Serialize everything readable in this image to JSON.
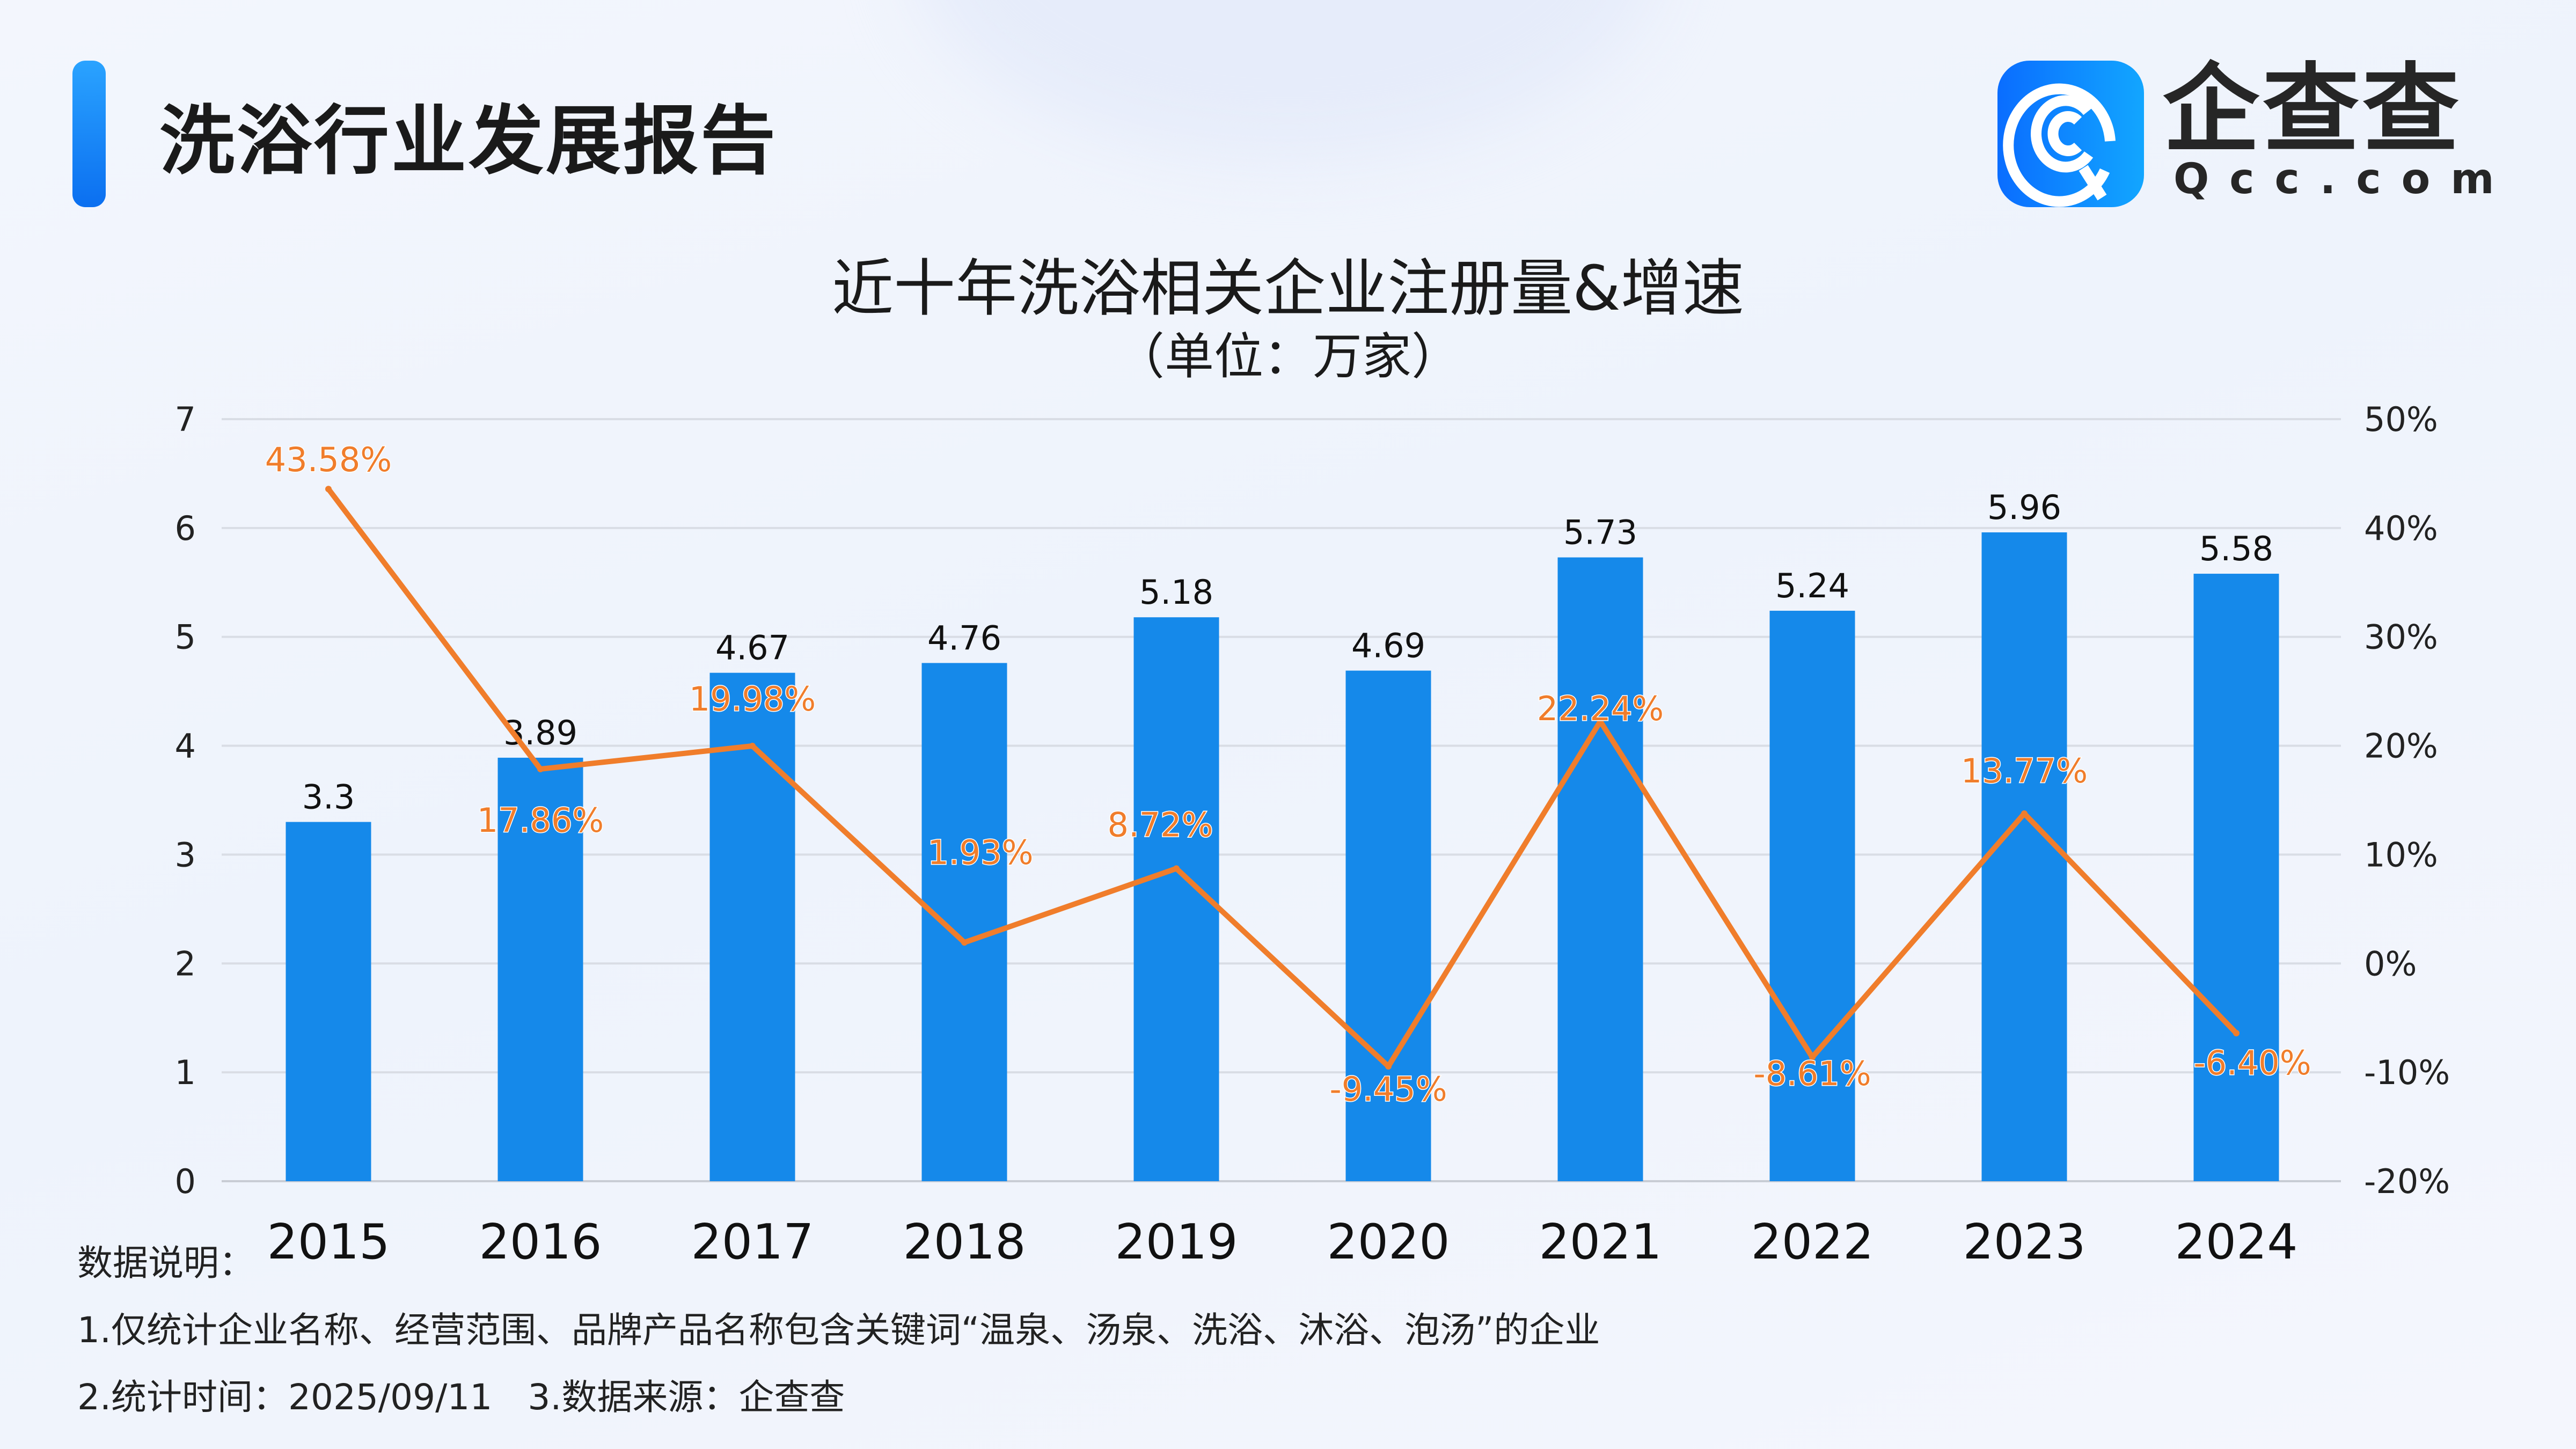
{
  "header": {
    "title": "洗浴行业发展报告",
    "logo_cn": "企查查",
    "logo_en": "Qcc.com"
  },
  "colors": {
    "bar": "#1589ea",
    "line": "#f07d2b",
    "accent": "#0b6ff0"
  },
  "chart_data": {
    "type": "bar+line",
    "title": "近十年洗浴相关企业注册量&增速",
    "subtitle": "（单位：万家）",
    "categories": [
      "2015",
      "2016",
      "2017",
      "2018",
      "2019",
      "2020",
      "2021",
      "2022",
      "2023",
      "2024"
    ],
    "series": [
      {
        "type": "bar",
        "axis": "left",
        "values": [
          3.3,
          3.89,
          4.67,
          4.76,
          5.18,
          4.69,
          5.73,
          5.24,
          5.96,
          5.58
        ],
        "labels": [
          "3.3",
          "3.89",
          "4.67",
          "4.76",
          "5.18",
          "4.69",
          "5.73",
          "5.24",
          "5.96",
          "5.58"
        ]
      },
      {
        "type": "line",
        "axis": "right",
        "values": [
          43.58,
          17.86,
          19.98,
          1.93,
          8.72,
          -9.45,
          22.24,
          -8.61,
          13.77,
          -6.4
        ],
        "labels": [
          "43.58%",
          "17.86%",
          "19.98%",
          "1.93%",
          "8.72%",
          "-9.45%",
          "22.24%",
          "-8.61%",
          "13.77%",
          "-6.40%"
        ]
      }
    ],
    "ylim": [
      0,
      7
    ],
    "yticks": [
      "0",
      "1",
      "2",
      "3",
      "4",
      "5",
      "6",
      "7"
    ],
    "y2lim": [
      -20,
      50
    ],
    "y2ticks": [
      "-20%",
      "-10%",
      "0%",
      "10%",
      "20%",
      "30%",
      "40%",
      "50%"
    ],
    "grid": true
  },
  "notes": {
    "heading": "数据说明：",
    "line1": "1.仅统计企业名称、经营范围、品牌产品名称包含关键词“温泉、汤泉、洗浴、沐浴、泡汤”的企业",
    "line2": "2.统计时间：2025/09/11　3.数据来源：企查查"
  }
}
